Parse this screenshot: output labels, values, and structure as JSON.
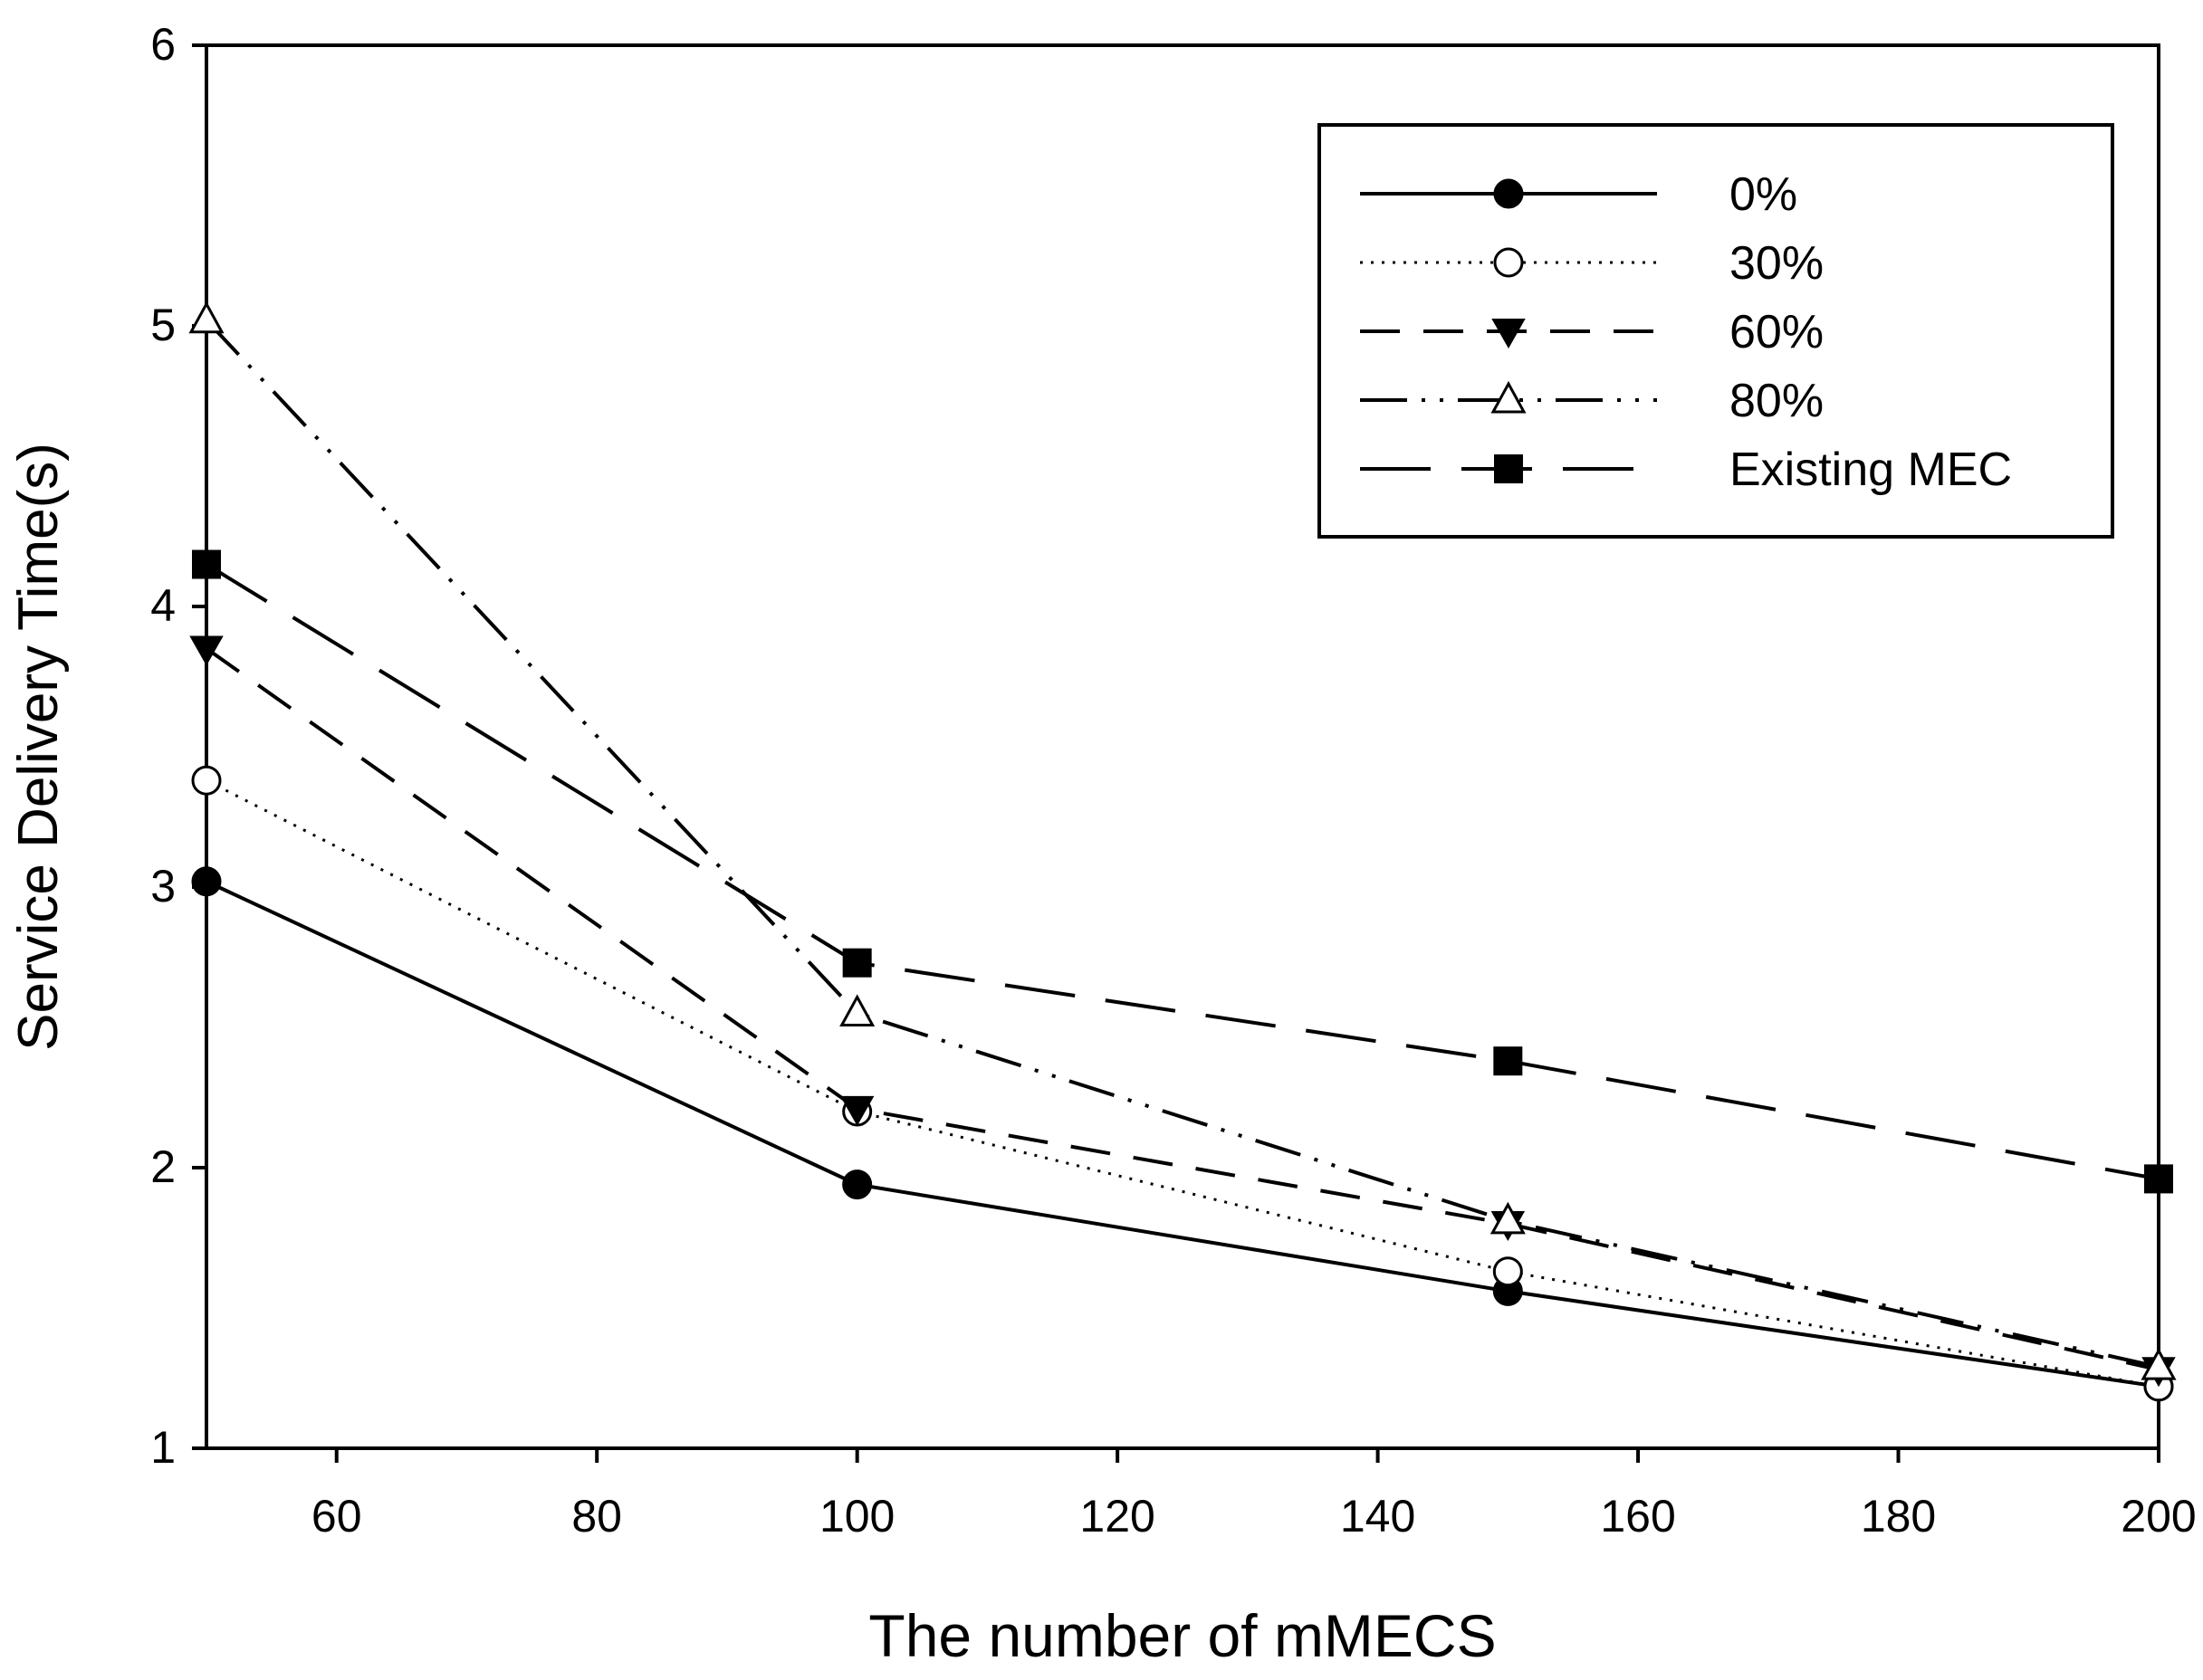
{
  "chart_data": {
    "type": "line",
    "title": "",
    "xlabel": "The number of mMECS",
    "ylabel": "Service Delivery Time(s)",
    "xlim": [
      50,
      200
    ],
    "ylim": [
      1,
      6
    ],
    "x_ticks": [
      60,
      80,
      100,
      120,
      140,
      160,
      180,
      200
    ],
    "y_ticks": [
      1,
      2,
      3,
      4,
      5,
      6
    ],
    "x": [
      50,
      100,
      150,
      200
    ],
    "legend_position": "top-right",
    "series": [
      {
        "name": "0%",
        "values": [
          3.02,
          1.94,
          1.56,
          1.22
        ],
        "marker": "circle-filled",
        "dash": "solid"
      },
      {
        "name": "30%",
        "values": [
          3.38,
          2.2,
          1.63,
          1.22
        ],
        "marker": "circle-open",
        "dash": "dotted"
      },
      {
        "name": "60%",
        "values": [
          3.85,
          2.21,
          1.8,
          1.28
        ],
        "marker": "triangle-down-filled",
        "dash": "dashed"
      },
      {
        "name": "80%",
        "values": [
          5.02,
          2.55,
          1.81,
          1.29
        ],
        "marker": "triangle-up-open",
        "dash": "dash-dot-dot"
      },
      {
        "name": "Existing MEC",
        "values": [
          4.15,
          2.73,
          2.38,
          1.96
        ],
        "marker": "square-filled",
        "dash": "long-dash"
      }
    ]
  }
}
